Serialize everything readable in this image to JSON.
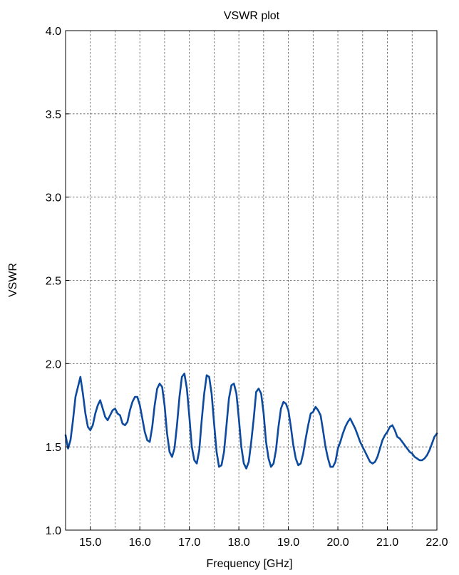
{
  "chart_data": {
    "type": "line",
    "title": "VSWR plot",
    "xlabel": "Frequency [GHz]",
    "ylabel": "VSWR",
    "xlim": [
      14.5,
      22.0
    ],
    "ylim": [
      1.0,
      4.0
    ],
    "x_ticks": [
      15.0,
      16.0,
      17.0,
      18.0,
      19.0,
      20.0,
      21.0,
      22.0
    ],
    "x_tick_labels": [
      "15.0",
      "16.0",
      "17.0",
      "18.0",
      "19.0",
      "20.0",
      "21.0",
      "22.0"
    ],
    "x_grid": [
      15.0,
      15.5,
      16.0,
      16.5,
      17.0,
      17.5,
      18.0,
      18.5,
      19.0,
      19.5,
      20.0,
      20.5,
      21.0,
      21.5,
      22.0
    ],
    "y_ticks": [
      1.0,
      1.5,
      2.0,
      2.5,
      3.0,
      3.5,
      4.0
    ],
    "y_tick_labels": [
      "1.0",
      "1.5",
      "2.0",
      "2.5",
      "3.0",
      "3.5",
      "4.0"
    ],
    "grid": true,
    "legend": "none",
    "line_color": "#0b4a9e",
    "series": [
      {
        "x": [
          14.5,
          14.55,
          14.6,
          14.65,
          14.7,
          14.8,
          14.85,
          14.9,
          14.95,
          15.0,
          15.05,
          15.1,
          15.15,
          15.2,
          15.25,
          15.3,
          15.35,
          15.4,
          15.45,
          15.5,
          15.55,
          15.6,
          15.65,
          15.7,
          15.75,
          15.8,
          15.85,
          15.9,
          15.95,
          16.0,
          16.05,
          16.1,
          16.15,
          16.2,
          16.25,
          16.3,
          16.35,
          16.4,
          16.45,
          16.5,
          16.55,
          16.6,
          16.65,
          16.7,
          16.75,
          16.8,
          16.85,
          16.9,
          16.95,
          17.0,
          17.05,
          17.1,
          17.15,
          17.2,
          17.25,
          17.3,
          17.35,
          17.4,
          17.45,
          17.5,
          17.55,
          17.6,
          17.65,
          17.7,
          17.75,
          17.8,
          17.85,
          17.9,
          17.95,
          18.0,
          18.05,
          18.1,
          18.15,
          18.2,
          18.25,
          18.3,
          18.35,
          18.4,
          18.45,
          18.5,
          18.55,
          18.6,
          18.65,
          18.7,
          18.75,
          18.8,
          18.85,
          18.9,
          18.95,
          19.0,
          19.05,
          19.1,
          19.15,
          19.2,
          19.25,
          19.3,
          19.35,
          19.4,
          19.45,
          19.5,
          19.55,
          19.6,
          19.65,
          19.7,
          19.75,
          19.8,
          19.85,
          19.9,
          19.95,
          20.0,
          20.05,
          20.1,
          20.15,
          20.2,
          20.25,
          20.3,
          20.35,
          20.4,
          20.45,
          20.5,
          20.55,
          20.6,
          20.65,
          20.7,
          20.75,
          20.8,
          20.85,
          20.9,
          20.95,
          21.0,
          21.05,
          21.1,
          21.15,
          21.2,
          21.25,
          21.3,
          21.35,
          21.4,
          21.45,
          21.5,
          21.55,
          21.6,
          21.65,
          21.7,
          21.75,
          21.8,
          21.85,
          21.9,
          21.95,
          22.0
        ],
        "y": [
          1.57,
          1.49,
          1.54,
          1.66,
          1.8,
          1.92,
          1.82,
          1.7,
          1.62,
          1.6,
          1.63,
          1.7,
          1.75,
          1.78,
          1.73,
          1.68,
          1.66,
          1.69,
          1.72,
          1.73,
          1.7,
          1.69,
          1.64,
          1.63,
          1.65,
          1.72,
          1.77,
          1.8,
          1.8,
          1.75,
          1.67,
          1.59,
          1.54,
          1.53,
          1.62,
          1.75,
          1.85,
          1.88,
          1.86,
          1.75,
          1.58,
          1.47,
          1.44,
          1.49,
          1.63,
          1.8,
          1.92,
          1.94,
          1.85,
          1.68,
          1.5,
          1.42,
          1.4,
          1.48,
          1.66,
          1.82,
          1.93,
          1.92,
          1.82,
          1.64,
          1.47,
          1.38,
          1.39,
          1.47,
          1.63,
          1.79,
          1.87,
          1.88,
          1.82,
          1.67,
          1.5,
          1.4,
          1.37,
          1.41,
          1.53,
          1.67,
          1.83,
          1.85,
          1.82,
          1.7,
          1.53,
          1.43,
          1.38,
          1.4,
          1.48,
          1.62,
          1.73,
          1.77,
          1.76,
          1.72,
          1.62,
          1.51,
          1.43,
          1.39,
          1.4,
          1.46,
          1.55,
          1.63,
          1.7,
          1.71,
          1.74,
          1.72,
          1.69,
          1.6,
          1.5,
          1.43,
          1.38,
          1.38,
          1.41,
          1.49,
          1.53,
          1.58,
          1.62,
          1.65,
          1.67,
          1.64,
          1.61,
          1.57,
          1.53,
          1.5,
          1.47,
          1.44,
          1.41,
          1.4,
          1.41,
          1.44,
          1.49,
          1.54,
          1.57,
          1.59,
          1.62,
          1.63,
          1.6,
          1.56,
          1.55,
          1.53,
          1.51,
          1.49,
          1.47,
          1.46,
          1.44,
          1.43,
          1.42,
          1.42,
          1.43,
          1.45,
          1.48,
          1.52,
          1.56,
          1.58
        ]
      }
    ]
  }
}
